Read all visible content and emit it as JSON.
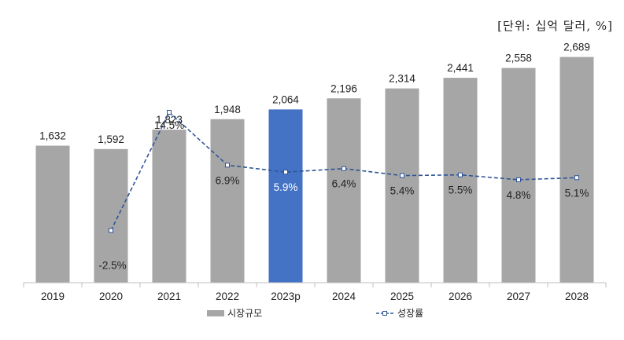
{
  "unit_note": "[단위: 십억 달러, %]",
  "colors": {
    "bar": "#a6a6a6",
    "bar_highlight": "#4472c4",
    "line": "#2f5597",
    "axis": "#bfbfbf"
  },
  "chart_data": {
    "type": "bar",
    "categories": [
      "2019",
      "2020",
      "2021",
      "2022",
      "2023p",
      "2024",
      "2025",
      "2026",
      "2027",
      "2028"
    ],
    "highlight_category": "2023p",
    "bar_value_labels": [
      "1,632",
      "1,592",
      "1,823",
      "1,948",
      "2,064",
      "2,196",
      "2,314",
      "2,441",
      "2,558",
      "2,689"
    ],
    "series": [
      {
        "name": "시장규모",
        "type": "bar",
        "values": [
          1632,
          1592,
          1823,
          1948,
          2064,
          2196,
          2314,
          2441,
          2558,
          2689
        ]
      },
      {
        "name": "성장률",
        "type": "line",
        "style": "dashed with square markers",
        "values": [
          null,
          -2.5,
          14.5,
          6.9,
          5.9,
          6.4,
          5.4,
          5.5,
          4.8,
          5.1
        ],
        "labels": [
          "",
          "-2.5%",
          "14.5%",
          "6.9%",
          "5.9%",
          "6.4%",
          "5.4%",
          "5.5%",
          "4.8%",
          "5.1%"
        ]
      }
    ],
    "bar_axis_range": [
      0,
      2900
    ],
    "line_axis_range": [
      -10,
      25
    ],
    "legend_position": "bottom",
    "grid": false
  }
}
